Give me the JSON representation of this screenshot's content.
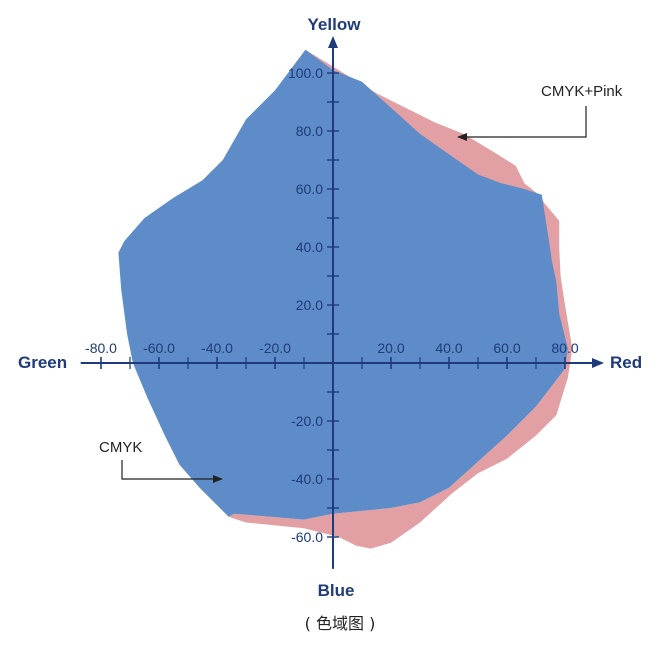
{
  "chart_data": {
    "type": "area",
    "caption": "( 色域图 )",
    "axes": {
      "left": "Green",
      "right": "Red",
      "top": "Yellow",
      "bottom": "Blue"
    },
    "xlim": [
      -87,
      90
    ],
    "ylim": [
      -71,
      110
    ],
    "x_ticks": [
      -80.0,
      -60.0,
      -40.0,
      -20.0,
      20.0,
      40.0,
      60.0,
      80.0
    ],
    "y_ticks": [
      100.0,
      80.0,
      60.0,
      40.0,
      20.0,
      -20.0,
      -40.0,
      -60.0
    ],
    "x_tick_labels": [
      "-80.0",
      "-60.0",
      "-40.0",
      "-20.0",
      "20.0",
      "40.0",
      "60.0",
      "80.0"
    ],
    "y_tick_labels": [
      "100.0",
      "80.0",
      "60.0",
      "40.0",
      "20.0",
      "-20.0",
      "-40.0",
      "-60.0"
    ],
    "series": [
      {
        "name": "CMYK+Pink",
        "color": "#e3a0a4",
        "points": [
          [
            -9.5,
            108
          ],
          [
            2,
            101
          ],
          [
            15,
            93
          ],
          [
            35,
            83
          ],
          [
            45,
            79
          ],
          [
            55,
            73
          ],
          [
            63,
            68
          ],
          [
            66,
            62
          ],
          [
            71,
            58
          ],
          [
            73,
            55
          ],
          [
            78,
            49
          ],
          [
            78,
            40
          ],
          [
            78.5,
            30
          ],
          [
            80,
            20
          ],
          [
            82.5,
            5
          ],
          [
            81,
            -5
          ],
          [
            77,
            -18
          ],
          [
            70,
            -25
          ],
          [
            60,
            -33
          ],
          [
            50,
            -38
          ],
          [
            41,
            -45
          ],
          [
            30,
            -55
          ],
          [
            20,
            -62
          ],
          [
            13,
            -64
          ],
          [
            8,
            -63
          ],
          [
            2,
            -60
          ],
          [
            -10,
            -57
          ],
          [
            -20,
            -56
          ],
          [
            -30,
            -55
          ],
          [
            -36,
            -53
          ],
          [
            -34,
            -52
          ],
          [
            -10,
            -54
          ],
          [
            0,
            -52
          ],
          [
            10,
            -51
          ],
          [
            20,
            -50
          ],
          [
            30,
            -48
          ],
          [
            40,
            -43
          ],
          [
            50,
            -34
          ],
          [
            60,
            -25
          ],
          [
            70,
            -15
          ],
          [
            80,
            -2
          ]
        ]
      },
      {
        "name": "CMYK",
        "color": "#5e8cc8",
        "points": [
          [
            -9.5,
            108
          ],
          [
            -20,
            94
          ],
          [
            -30,
            84
          ],
          [
            -38,
            70
          ],
          [
            -45,
            63
          ],
          [
            -55,
            57
          ],
          [
            -65,
            50
          ],
          [
            -72,
            42
          ],
          [
            -74,
            38
          ],
          [
            -73,
            25
          ],
          [
            -71,
            10
          ],
          [
            -69,
            0
          ],
          [
            -64,
            -12
          ],
          [
            -58,
            -25
          ],
          [
            -53,
            -35
          ],
          [
            -46,
            -43
          ],
          [
            -40,
            -49
          ],
          [
            -36,
            -53
          ],
          [
            -34,
            -52
          ],
          [
            -10,
            -54
          ],
          [
            0,
            -52
          ],
          [
            10,
            -51
          ],
          [
            20,
            -50
          ],
          [
            30,
            -48
          ],
          [
            40,
            -43
          ],
          [
            50,
            -34
          ],
          [
            60,
            -25
          ],
          [
            70,
            -15
          ],
          [
            80,
            -2
          ],
          [
            81,
            5
          ],
          [
            78,
            17
          ],
          [
            77,
            28
          ],
          [
            75.5,
            35
          ],
          [
            74.5,
            42
          ],
          [
            72,
            58
          ],
          [
            66,
            60
          ],
          [
            58,
            62
          ],
          [
            50,
            65
          ],
          [
            40,
            72
          ],
          [
            30,
            79
          ],
          [
            20,
            88
          ],
          [
            10,
            97
          ],
          [
            0,
            101
          ]
        ]
      }
    ],
    "annotations": [
      {
        "text": "CMYK+Pink",
        "series": "CMYK+Pink"
      },
      {
        "text": "CMYK",
        "series": "CMYK"
      }
    ],
    "grid": false
  }
}
